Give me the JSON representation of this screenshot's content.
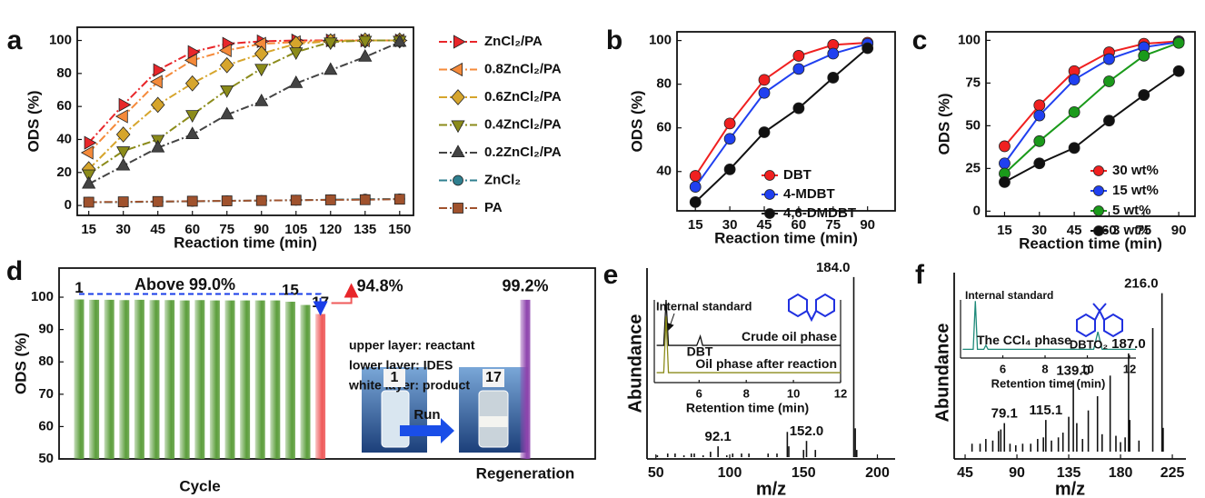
{
  "chart_data": [
    {
      "type": "line",
      "label": "a",
      "xlabel": "Reaction time (min)",
      "ylabel": "ODS (%)",
      "x": [
        15,
        30,
        45,
        60,
        75,
        90,
        105,
        120,
        135,
        150
      ],
      "xlim": [
        10,
        156
      ],
      "xticks": [
        15,
        30,
        45,
        60,
        75,
        90,
        105,
        120,
        135,
        150
      ],
      "ylim": [
        -6,
        108
      ],
      "yticks": [
        0,
        20,
        40,
        60,
        80,
        100
      ],
      "linestyle": "dashdot",
      "legend": "outside-right",
      "series": [
        {
          "name": "ZnCl₂/PA",
          "color": "#e8262a",
          "marker": "triangle-right",
          "values": [
            38,
            61,
            82,
            93,
            98,
            99.5,
            100,
            100,
            100,
            100
          ]
        },
        {
          "name": "0.8ZnCl₂/PA",
          "color": "#f58a3a",
          "marker": "triangle-left",
          "values": [
            32,
            54,
            75,
            88,
            94,
            98,
            99,
            100,
            100,
            100
          ]
        },
        {
          "name": "0.6ZnCl₂/PA",
          "color": "#d6a52c",
          "marker": "diamond",
          "values": [
            22,
            43,
            61,
            74,
            85,
            92,
            98,
            99.5,
            100,
            100
          ]
        },
        {
          "name": "0.4ZnCl₂/PA",
          "color": "#8b8b1a",
          "marker": "triangle-down",
          "values": [
            19,
            33,
            40,
            55,
            70,
            83,
            93,
            99,
            100,
            100
          ]
        },
        {
          "name": "0.2ZnCl₂/PA",
          "color": "#444444",
          "marker": "triangle-up",
          "values": [
            13,
            24,
            35,
            43,
            55,
            63,
            74,
            82,
            90,
            99
          ]
        },
        {
          "name": "ZnCl₂",
          "color": "#2f7f8f",
          "marker": "circle",
          "values": [
            2,
            2,
            2.3,
            2.5,
            2.8,
            3,
            3.2,
            3.5,
            3.8,
            4
          ]
        },
        {
          "name": "PA",
          "color": "#a0522d",
          "marker": "square",
          "values": [
            2,
            2.2,
            2.4,
            2.6,
            2.8,
            3,
            3.2,
            3.4,
            3.5,
            3.8
          ]
        }
      ]
    },
    {
      "type": "line",
      "label": "b",
      "xlabel": "Reaction time (min)",
      "ylabel": "ODS  (%)",
      "x": [
        15,
        30,
        45,
        60,
        75,
        90
      ],
      "xlim": [
        7,
        102
      ],
      "xticks": [
        15,
        30,
        45,
        60,
        75,
        90
      ],
      "ylim": [
        22,
        104
      ],
      "yticks": [
        40,
        60,
        80,
        100
      ],
      "linestyle": "solid",
      "legend": "lower-right",
      "series": [
        {
          "name": "DBT",
          "color": "#f02020",
          "marker": "circle",
          "values": [
            38,
            62,
            82,
            93,
            98,
            99
          ]
        },
        {
          "name": "4-MDBT",
          "color": "#2040f0",
          "marker": "circle",
          "values": [
            33,
            55,
            76,
            87,
            94,
            98.5
          ]
        },
        {
          "name": "4,6-DMDBT",
          "color": "#111111",
          "marker": "circle",
          "values": [
            26,
            41,
            58,
            69,
            83,
            96.5
          ]
        }
      ]
    },
    {
      "type": "line",
      "label": "c",
      "xlabel": "Reaction time (min)",
      "ylabel": "ODS (%)",
      "x": [
        15,
        30,
        45,
        60,
        75,
        90
      ],
      "xlim": [
        7,
        97
      ],
      "xticks": [
        15,
        30,
        45,
        60,
        75,
        90
      ],
      "ylim": [
        -3,
        105
      ],
      "yticks": [
        0,
        25,
        50,
        75,
        100
      ],
      "linestyle": "solid",
      "legend": "lower-right",
      "series": [
        {
          "name": "30 wt%",
          "color": "#f02020",
          "marker": "circle",
          "values": [
            38,
            62,
            82,
            93,
            98,
            99.5
          ]
        },
        {
          "name": "15 wt%",
          "color": "#2040f0",
          "marker": "circle",
          "values": [
            28,
            56,
            77,
            89,
            96,
            99
          ]
        },
        {
          "name": "5 wt%",
          "color": "#1a9a1a",
          "marker": "circle",
          "values": [
            22,
            41,
            58,
            76,
            91,
            98.5
          ]
        },
        {
          "name": "3 wt%",
          "color": "#111111",
          "marker": "circle",
          "values": [
            17,
            28,
            37,
            53,
            68,
            82
          ]
        }
      ]
    },
    {
      "type": "bar",
      "label": "d",
      "xlabel": "Cycle",
      "ylabel": "ODS (%)",
      "categories": [
        "1",
        null,
        null,
        null,
        null,
        null,
        null,
        null,
        null,
        null,
        null,
        null,
        null,
        null,
        "15",
        null,
        "17",
        "Regeneration"
      ],
      "values": [
        99.3,
        99.2,
        99.2,
        99.1,
        99.2,
        99.1,
        99.1,
        99.0,
        99.1,
        99.0,
        99.0,
        99.0,
        99.0,
        99.0,
        98.6,
        97.6,
        94.8,
        99.2
      ],
      "value_labels": [
        null,
        null,
        null,
        null,
        null,
        null,
        null,
        null,
        null,
        null,
        null,
        null,
        null,
        null,
        null,
        null,
        "94.8%",
        "99.2%"
      ],
      "colors": [
        "#5c9e3c",
        "#5c9e3c",
        "#5c9e3c",
        "#5c9e3c",
        "#5c9e3c",
        "#5c9e3c",
        "#5c9e3c",
        "#5c9e3c",
        "#5c9e3c",
        "#5c9e3c",
        "#5c9e3c",
        "#5c9e3c",
        "#5c9e3c",
        "#5c9e3c",
        "#5c9e3c",
        "#5c9e3c",
        "#ef5a5a",
        "#8e44ad"
      ],
      "ylim": [
        50,
        109
      ],
      "yticks": [
        50,
        60,
        70,
        80,
        90,
        100
      ],
      "annotations": [
        "Above 99.0%",
        "upper layer: reactant",
        "lower layer: IDES",
        "white layer: product",
        "Run",
        "1",
        "17"
      ]
    },
    {
      "type": "spectrum",
      "label": "e",
      "xlabel": "m/z",
      "ylabel": "Abundance",
      "x": [
        51,
        58,
        63,
        69,
        74,
        76,
        82,
        87,
        92.1,
        98,
        102,
        108,
        113,
        126,
        132,
        139,
        140,
        150,
        152,
        158,
        184,
        185,
        186
      ],
      "values": [
        1,
        2,
        2,
        1,
        2,
        2,
        1,
        3,
        6,
        1,
        2,
        2,
        2,
        2,
        2,
        14,
        6,
        4,
        9,
        4,
        100,
        16,
        4
      ],
      "x_labels": [
        null,
        null,
        null,
        null,
        null,
        null,
        null,
        null,
        "92.1",
        null,
        null,
        null,
        null,
        null,
        null,
        null,
        null,
        null,
        "152.0",
        null,
        "184.0",
        null,
        null
      ],
      "highlight_color": "#1f3fe8",
      "color": "#111111",
      "xlim": [
        44,
        212
      ],
      "xticks": [
        50,
        100,
        150,
        200
      ],
      "ylim": [
        -1,
        105
      ]
    },
    {
      "type": "line",
      "xlabel": "Retention time (min)",
      "x": [
        4.2,
        4.5,
        4.6,
        4.7,
        5.0,
        5.9,
        6.05,
        6.15,
        6.3,
        12
      ],
      "xlim": [
        4.1,
        12
      ],
      "xticks": [
        6,
        8,
        10,
        12
      ],
      "ylim": [
        0,
        100
      ],
      "linestyle": "solid",
      "legend": "inline-right",
      "series": [
        {
          "name": "Crude oil phase",
          "color": "#111111",
          "values": [
            45,
            45,
            100,
            45,
            45,
            45,
            56,
            45,
            45,
            45
          ]
        },
        {
          "name": "Oil phase after reaction",
          "color": "#8b8b1a",
          "values": [
            12,
            12,
            80,
            12,
            12,
            12,
            12,
            12,
            12,
            12
          ]
        }
      ],
      "annotations": [
        "Internal standard",
        "DBT"
      ]
    },
    {
      "type": "spectrum",
      "label": "f",
      "xlabel": "m/z",
      "ylabel": "Abundance",
      "x": [
        51,
        58,
        63,
        69,
        74,
        76,
        79.1,
        84,
        89,
        95,
        102,
        108,
        113,
        115.1,
        120,
        126,
        130,
        135,
        139,
        142,
        147,
        152,
        160,
        164,
        171,
        176,
        180,
        184,
        187,
        188,
        196,
        208,
        216,
        217
      ],
      "values": [
        5,
        5,
        8,
        7,
        13,
        14,
        18,
        5,
        4,
        5,
        5,
        8,
        9,
        20,
        7,
        9,
        12,
        22,
        45,
        18,
        8,
        26,
        35,
        11,
        48,
        10,
        6,
        9,
        62,
        20,
        7,
        78,
        100,
        15
      ],
      "x_labels": [
        null,
        null,
        null,
        null,
        null,
        null,
        "79.1",
        null,
        null,
        null,
        null,
        null,
        null,
        "115.1",
        null,
        null,
        null,
        null,
        "139.0",
        null,
        null,
        null,
        null,
        null,
        null,
        null,
        null,
        null,
        "187.0",
        null,
        null,
        null,
        "216.0",
        null
      ],
      "highlight_color": "#e8262a",
      "color": "#111111",
      "xlim": [
        35.5,
        236.8
      ],
      "xticks": [
        45,
        90,
        135,
        180,
        225
      ],
      "ylim": [
        -4.6,
        113
      ]
    },
    {
      "type": "line",
      "xlabel": "Retention time (min)",
      "x": [
        4.1,
        4.6,
        4.7,
        4.8,
        5.1,
        5.2,
        5.3,
        10.3,
        10.5,
        10.7,
        12.3
      ],
      "xlim": [
        4,
        12.3
      ],
      "xticks": [
        6,
        8,
        10,
        12
      ],
      "ylim": [
        0,
        100
      ],
      "linestyle": "solid",
      "legend": "inline-left",
      "series": [
        {
          "name": "The CCl₄ phase",
          "color": "#1f8a7a",
          "values": [
            15,
            15,
            98,
            15,
            15,
            22,
            15,
            15,
            45,
            15,
            15
          ]
        }
      ],
      "annotations": [
        "Internal standard",
        "DBTO₂"
      ]
    }
  ]
}
